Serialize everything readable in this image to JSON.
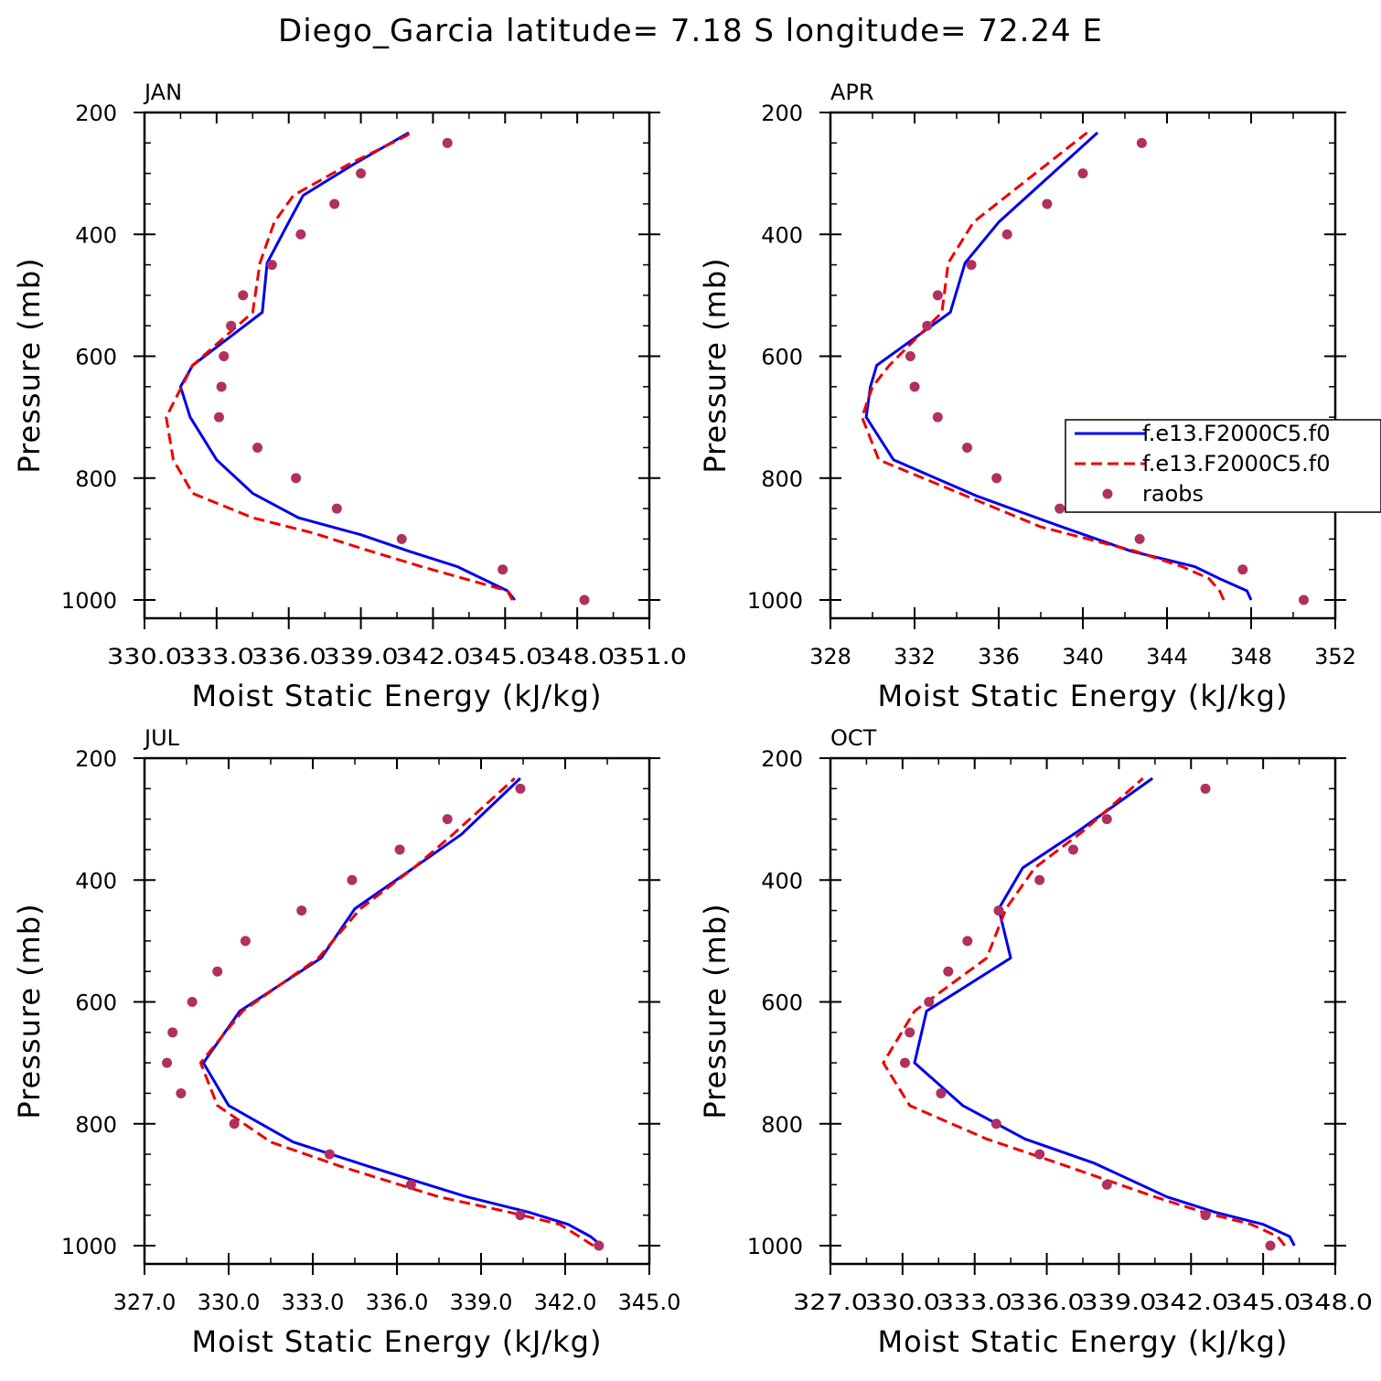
{
  "title": "Diego_Garcia  latitude= 7.18 S longitude= 72.24 E",
  "colors": {
    "model1": "#0000ee",
    "model2": "#ee0000",
    "raobs": "#b03060"
  },
  "legend": [
    "f.e13.F2000C5.f0",
    "f.e13.F2000C5.f0",
    "raobs"
  ],
  "chart_data": [
    {
      "type": "line",
      "title": "JAN",
      "xlabel": "Moist Static Energy (kJ/kg)",
      "ylabel": "Pressure (mb)",
      "xlim": [
        330.0,
        351.0
      ],
      "xticks": [
        330.0,
        333.0,
        336.0,
        339.0,
        342.0,
        345.0,
        348.0,
        351.0
      ],
      "xtick_labels": [
        "330.0",
        "333.0",
        "336.0",
        "339.0",
        "342.0",
        "345.0",
        "348.0",
        "351.0"
      ],
      "xtick_label_style": "concatenated",
      "ylim": [
        1030,
        200
      ],
      "yticks": [
        200,
        400,
        600,
        800,
        1000
      ],
      "ytick_labels": [
        "200",
        "400",
        "600",
        "800",
        "1000"
      ],
      "series": [
        {
          "name": "f.e13.F2000C5.f0",
          "style": "solid",
          "color": "#0000ee",
          "x": [
            345.4,
            345.1,
            343.0,
            341.0,
            339.0,
            336.4,
            334.5,
            333.0,
            331.9,
            331.5,
            332.0,
            334.9,
            335.1,
            336.0,
            336.6,
            338.7,
            341.0
          ],
          "y": [
            1000,
            985,
            945,
            920,
            893,
            865,
            825,
            770,
            700,
            650,
            615,
            528,
            447,
            380,
            336,
            285,
            233
          ]
        },
        {
          "name": "f.e13.F2000C5.f0",
          "style": "dashed",
          "color": "#ee0000",
          "x": [
            345.3,
            345.1,
            341.5,
            339.0,
            337.0,
            334.5,
            332.0,
            331.2,
            330.9,
            332.0,
            334.5,
            334.8,
            335.4,
            336.2,
            338.5,
            340.8,
            341.1
          ],
          "y": [
            1000,
            985,
            945,
            915,
            890,
            865,
            825,
            770,
            700,
            615,
            528,
            447,
            380,
            336,
            285,
            240,
            233
          ]
        },
        {
          "name": "raobs",
          "style": "points",
          "color": "#b03060",
          "x": [
            348.3,
            344.9,
            340.7,
            338.0,
            336.3,
            334.7,
            333.1,
            333.2,
            333.3,
            333.6,
            334.1,
            335.3,
            336.5,
            337.9,
            339.0,
            342.6
          ],
          "y": [
            1000,
            950,
            900,
            850,
            800,
            750,
            700,
            650,
            600,
            550,
            500,
            450,
            400,
            350,
            300,
            250
          ]
        }
      ]
    },
    {
      "type": "line",
      "title": "APR",
      "xlabel": "Moist Static Energy (kJ/kg)",
      "ylabel": "Pressure (mb)",
      "xlim": [
        328,
        352
      ],
      "xticks": [
        328,
        332,
        336,
        340,
        344,
        348,
        352
      ],
      "xtick_labels": [
        "328",
        "332",
        "336",
        "340",
        "344",
        "348",
        "352"
      ],
      "xtick_label_style": "separate",
      "ylim": [
        1030,
        200
      ],
      "yticks": [
        200,
        400,
        600,
        800,
        1000
      ],
      "ytick_labels": [
        "200",
        "400",
        "600",
        "800",
        "1000"
      ],
      "series": [
        {
          "name": "f.e13.F2000C5.f0",
          "style": "solid",
          "color": "#0000ee",
          "x": [
            348.0,
            347.8,
            346.5,
            345.3,
            342.3,
            339.0,
            335.0,
            331.0,
            329.7,
            329.9,
            330.2,
            333.7,
            334.4,
            336.0,
            340.7
          ],
          "y": [
            1000,
            985,
            965,
            945,
            920,
            880,
            830,
            770,
            700,
            650,
            615,
            528,
            447,
            380,
            233
          ]
        },
        {
          "name": "f.e13.F2000C5.f0",
          "style": "dashed",
          "color": "#ee0000",
          "x": [
            346.7,
            346.5,
            346.0,
            344.7,
            342.5,
            338.0,
            334.5,
            330.3,
            329.5,
            330.0,
            330.8,
            333.3,
            333.6,
            334.8,
            340.2
          ],
          "y": [
            1000,
            985,
            965,
            945,
            920,
            880,
            830,
            770,
            700,
            650,
            615,
            528,
            447,
            380,
            233
          ]
        },
        {
          "name": "raobs",
          "style": "points",
          "color": "#b03060",
          "x": [
            350.5,
            347.6,
            342.7,
            338.9,
            335.9,
            334.5,
            333.1,
            332.0,
            331.8,
            332.6,
            333.1,
            334.7,
            336.4,
            338.3,
            340.0,
            342.8
          ],
          "y": [
            1000,
            950,
            900,
            850,
            800,
            750,
            700,
            650,
            600,
            550,
            500,
            450,
            400,
            350,
            300,
            250
          ]
        }
      ]
    },
    {
      "type": "line",
      "title": "JUL",
      "xlabel": "Moist Static Energy (kJ/kg)",
      "ylabel": "Pressure (mb)",
      "xlim": [
        327.0,
        345.0
      ],
      "xticks": [
        327.0,
        330.0,
        333.0,
        336.0,
        339.0,
        342.0,
        345.0
      ],
      "xtick_labels": [
        "327.0",
        "330.0",
        "333.0",
        "336.0",
        "339.0",
        "342.0",
        "345.0"
      ],
      "xtick_label_style": "separate",
      "ylim": [
        1030,
        200
      ],
      "yticks": [
        200,
        400,
        600,
        800,
        1000
      ],
      "ytick_labels": [
        "200",
        "400",
        "600",
        "800",
        "1000"
      ],
      "series": [
        {
          "name": "f.e13.F2000C5.f0",
          "style": "solid",
          "color": "#0000ee",
          "x": [
            343.3,
            342.9,
            342.1,
            340.7,
            338.5,
            335.0,
            332.3,
            330.0,
            329.1,
            330.4,
            333.3,
            334.5,
            336.6,
            338.3,
            340.4
          ],
          "y": [
            1000,
            985,
            965,
            945,
            920,
            870,
            830,
            770,
            700,
            615,
            528,
            447,
            380,
            325,
            233
          ]
        },
        {
          "name": "f.e13.F2000C5.f0",
          "style": "dashed",
          "color": "#ee0000",
          "x": [
            343.0,
            342.5,
            341.8,
            340.0,
            337.5,
            334.0,
            331.5,
            329.6,
            329.0,
            330.5,
            333.2,
            334.7,
            336.6,
            338.0,
            340.2
          ],
          "y": [
            1000,
            985,
            965,
            945,
            920,
            870,
            830,
            770,
            700,
            615,
            528,
            447,
            380,
            325,
            233
          ]
        },
        {
          "name": "raobs",
          "style": "points",
          "color": "#b03060",
          "x": [
            343.2,
            340.4,
            336.5,
            333.6,
            330.2,
            328.3,
            327.8,
            328.0,
            328.7,
            329.6,
            330.6,
            332.6,
            334.4,
            336.1,
            337.8,
            340.4
          ],
          "y": [
            1000,
            950,
            900,
            850,
            800,
            750,
            700,
            650,
            600,
            550,
            500,
            450,
            400,
            350,
            300,
            250
          ]
        }
      ]
    },
    {
      "type": "line",
      "title": "OCT",
      "xlabel": "Moist Static Energy (kJ/kg)",
      "ylabel": "Pressure (mb)",
      "xlim": [
        327.0,
        348.0
      ],
      "xticks": [
        327.0,
        330.0,
        333.0,
        336.0,
        339.0,
        342.0,
        345.0,
        348.0
      ],
      "xtick_labels": [
        "327.0",
        "330.0",
        "333.0",
        "336.0",
        "339.0",
        "342.0",
        "345.0",
        "348.0"
      ],
      "xtick_label_style": "concatenated",
      "ylim": [
        1030,
        200
      ],
      "yticks": [
        200,
        400,
        600,
        800,
        1000
      ],
      "ytick_labels": [
        "200",
        "400",
        "600",
        "800",
        "1000"
      ],
      "series": [
        {
          "name": "f.e13.F2000C5.f0",
          "style": "solid",
          "color": "#0000ee",
          "x": [
            346.3,
            346.1,
            345.0,
            343.0,
            341.0,
            338.0,
            335.1,
            332.5,
            330.5,
            331.0,
            334.5,
            334.0,
            335.0,
            337.3,
            340.4
          ],
          "y": [
            1000,
            985,
            965,
            945,
            920,
            865,
            825,
            770,
            700,
            615,
            528,
            447,
            380,
            320,
            233
          ]
        },
        {
          "name": "f.e13.F2000C5.f0",
          "style": "dashed",
          "color": "#ee0000",
          "x": [
            345.9,
            345.6,
            344.5,
            342.5,
            340.5,
            336.5,
            333.5,
            330.3,
            329.2,
            330.5,
            333.5,
            334.3,
            335.5,
            337.5,
            340.0
          ],
          "y": [
            1000,
            985,
            965,
            945,
            920,
            865,
            825,
            770,
            700,
            615,
            528,
            447,
            380,
            320,
            233
          ]
        },
        {
          "name": "raobs",
          "style": "points",
          "color": "#b03060",
          "x": [
            345.3,
            342.6,
            338.5,
            335.7,
            333.9,
            331.6,
            330.1,
            330.3,
            331.1,
            331.9,
            332.7,
            334.0,
            335.7,
            337.1,
            338.5,
            342.6
          ],
          "y": [
            1000,
            950,
            900,
            850,
            800,
            750,
            700,
            650,
            600,
            550,
            500,
            450,
            400,
            350,
            300,
            250
          ]
        }
      ]
    }
  ]
}
